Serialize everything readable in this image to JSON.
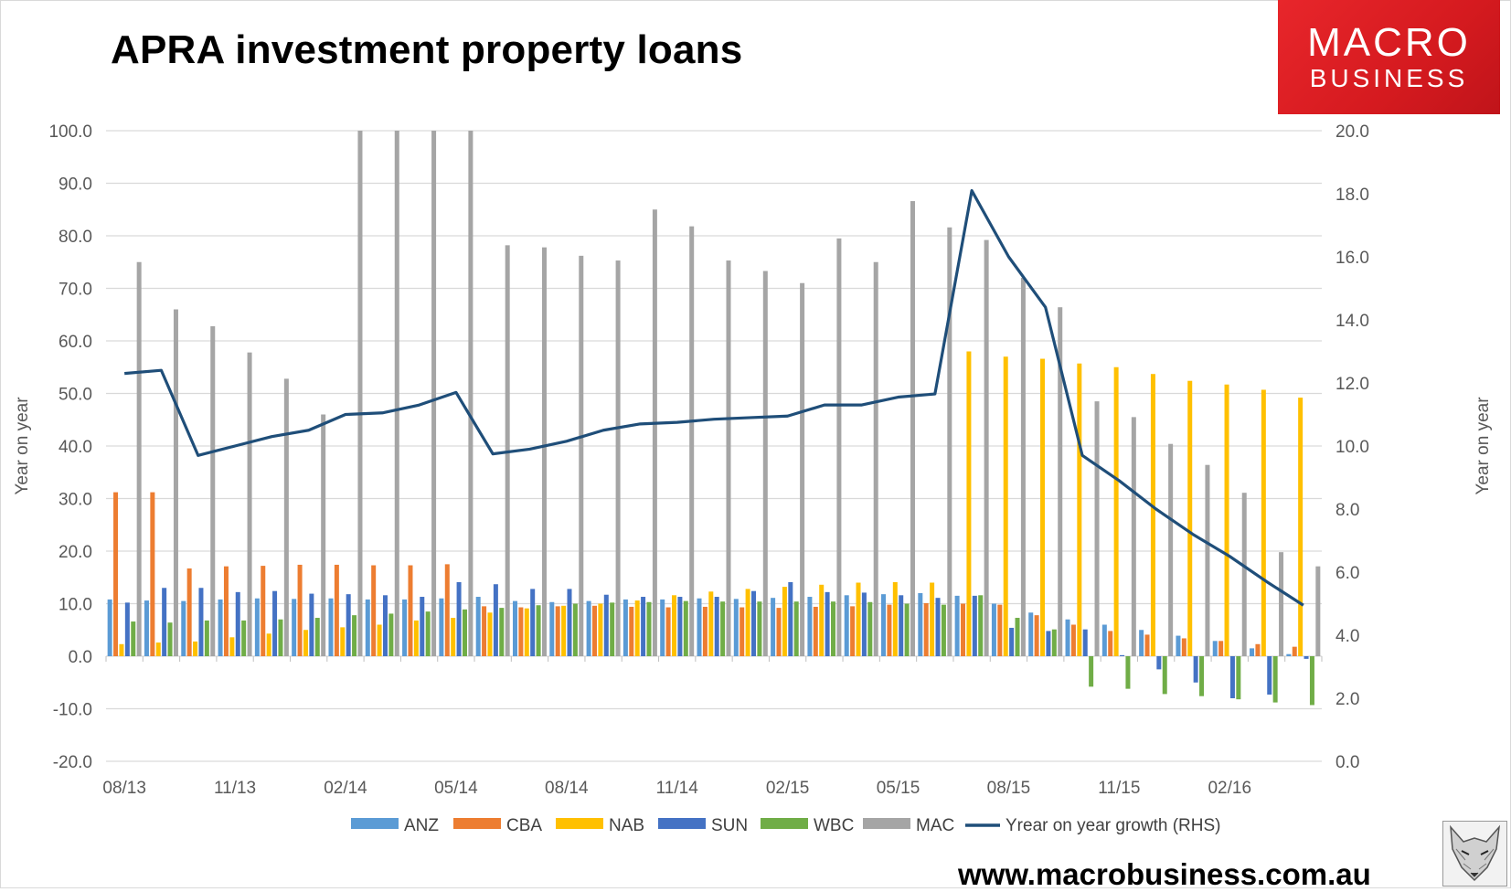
{
  "title": "APRA investment property loans",
  "logo": {
    "line1": "MACRO",
    "line2": "BUSINESS"
  },
  "website": "www.macrobusiness.com.au",
  "chart_data": {
    "type": "bar",
    "title": "APRA investment property loans",
    "ylabel": "Year on year",
    "y2label": "Year on year",
    "ylim": [
      -20,
      100
    ],
    "y2lim": [
      0,
      20
    ],
    "yticks": [
      "100.0",
      "90.0",
      "80.0",
      "70.0",
      "60.0",
      "50.0",
      "40.0",
      "30.0",
      "20.0",
      "10.0",
      "0.0",
      "-10.0",
      "-20.0"
    ],
    "y2ticks": [
      "20.0",
      "18.0",
      "16.0",
      "14.0",
      "12.0",
      "10.0",
      "8.0",
      "6.0",
      "4.0",
      "2.0",
      "0.0"
    ],
    "xtick_labels": [
      "08/13",
      "11/13",
      "02/14",
      "05/14",
      "08/14",
      "11/14",
      "02/15",
      "05/15",
      "08/15",
      "11/15",
      "02/16"
    ],
    "grid": true,
    "legend_position": "bottom",
    "categories": [
      "Aug-13",
      "Sep-13",
      "Oct-13",
      "Nov-13",
      "Dec-13",
      "Jan-14",
      "Feb-14",
      "Mar-14",
      "Apr-14",
      "May-14",
      "Jun-14",
      "Jul-14",
      "Aug-14",
      "Sep-14",
      "Oct-14",
      "Nov-14",
      "Dec-14",
      "Jan-15",
      "Feb-15",
      "Mar-15",
      "Apr-15",
      "May-15",
      "Jun-15",
      "Jul-15",
      "Aug-15",
      "Sep-15",
      "Oct-15",
      "Nov-15",
      "Dec-15",
      "Jan-16",
      "Feb-16",
      "Mar-16",
      "Apr-16"
    ],
    "series": [
      {
        "name": "ANZ",
        "color": "#5b9bd5",
        "axis": "left",
        "values": [
          10.8,
          10.6,
          10.5,
          10.8,
          11.0,
          10.9,
          11.0,
          10.8,
          10.8,
          11.0,
          11.3,
          10.5,
          10.3,
          10.5,
          10.8,
          10.8,
          11.0,
          10.9,
          11.1,
          11.3,
          11.6,
          11.8,
          12.0,
          11.5,
          10.0,
          8.3,
          7.0,
          6.0,
          5.0,
          3.9,
          2.9,
          1.5,
          0.4
        ]
      },
      {
        "name": "CBA",
        "color": "#ed7d31",
        "axis": "left",
        "values": [
          31.2,
          31.2,
          16.7,
          17.1,
          17.2,
          17.4,
          17.4,
          17.3,
          17.3,
          17.5,
          9.5,
          9.3,
          9.5,
          9.6,
          9.4,
          9.3,
          9.4,
          9.3,
          9.2,
          9.4,
          9.5,
          9.8,
          10.1,
          10.0,
          9.8,
          7.8,
          6.0,
          4.8,
          4.1,
          3.4,
          2.9,
          2.3,
          1.8
        ]
      },
      {
        "name": "NAB",
        "color": "#ffc000",
        "axis": "left",
        "values": [
          2.3,
          2.6,
          2.8,
          3.6,
          4.3,
          5.0,
          5.5,
          6.0,
          6.8,
          7.3,
          8.3,
          9.1,
          9.6,
          10.0,
          10.6,
          11.6,
          12.3,
          12.8,
          13.2,
          13.6,
          14.0,
          14.1,
          14.0,
          58.0,
          57.0,
          56.6,
          55.7,
          55.0,
          53.7,
          52.4,
          51.7,
          50.7,
          49.2
        ]
      },
      {
        "name": "SUN",
        "color": "#4472c4",
        "axis": "left",
        "values": [
          10.2,
          13.0,
          13.0,
          12.2,
          12.4,
          11.9,
          11.8,
          11.6,
          11.3,
          14.1,
          13.7,
          12.8,
          12.8,
          11.7,
          11.3,
          11.3,
          11.3,
          12.4,
          14.1,
          12.2,
          12.1,
          11.6,
          11.1,
          11.5,
          5.4,
          4.8,
          5.1,
          0.2,
          -2.5,
          -5.0,
          -8.0,
          -7.3,
          -0.5
        ]
      },
      {
        "name": "WBC",
        "color": "#70ad47",
        "axis": "left",
        "values": [
          6.6,
          6.4,
          6.8,
          6.8,
          7.0,
          7.3,
          7.8,
          8.1,
          8.5,
          8.9,
          9.2,
          9.7,
          10.0,
          10.2,
          10.3,
          10.5,
          10.4,
          10.4,
          10.4,
          10.4,
          10.3,
          10.0,
          9.8,
          11.6,
          7.3,
          5.1,
          -5.8,
          -6.2,
          -7.2,
          -7.6,
          -8.2,
          -8.8,
          -9.3
        ]
      },
      {
        "name": "MAC",
        "color": "#a5a5a5",
        "axis": "left",
        "values": [
          75.0,
          66.0,
          62.8,
          57.8,
          52.8,
          46.0,
          100.0,
          100.0,
          100.0,
          100.0,
          78.2,
          77.8,
          76.2,
          75.3,
          85.0,
          81.8,
          75.3,
          73.3,
          71.0,
          79.5,
          75.0,
          86.6,
          81.6,
          79.2,
          72.0,
          66.4,
          48.5,
          45.5,
          40.4,
          36.4,
          31.1,
          19.8,
          17.1
        ]
      },
      {
        "name": "Yrear on year growth (RHS)",
        "color": "#1f4e79",
        "axis": "right",
        "type": "line",
        "values": [
          12.3,
          12.4,
          9.7,
          10.0,
          10.3,
          10.5,
          11.0,
          11.05,
          11.3,
          11.7,
          9.75,
          9.9,
          10.15,
          10.5,
          10.7,
          10.75,
          10.85,
          10.9,
          10.95,
          11.3,
          11.3,
          11.55,
          11.65,
          18.1,
          16.0,
          14.4,
          9.7,
          8.9,
          8.0,
          7.2,
          6.5,
          5.7,
          4.95
        ]
      }
    ]
  }
}
